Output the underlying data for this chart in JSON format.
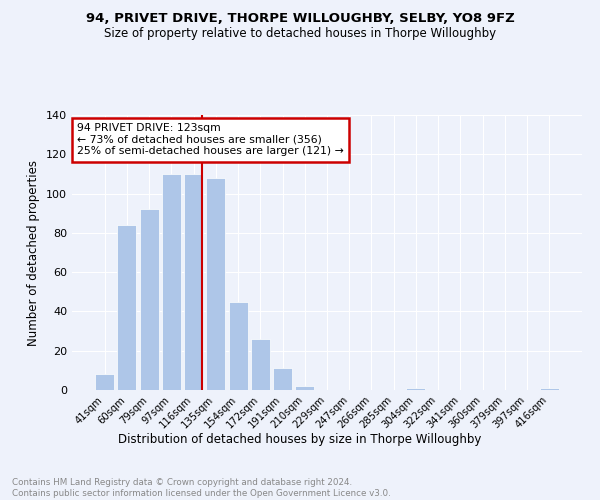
{
  "title": "94, PRIVET DRIVE, THORPE WILLOUGHBY, SELBY, YO8 9FZ",
  "subtitle": "Size of property relative to detached houses in Thorpe Willoughby",
  "xlabel": "Distribution of detached houses by size in Thorpe Willoughby",
  "ylabel": "Number of detached properties",
  "footnote": "Contains HM Land Registry data © Crown copyright and database right 2024.\nContains public sector information licensed under the Open Government Licence v3.0.",
  "bar_labels": [
    "41sqm",
    "60sqm",
    "79sqm",
    "97sqm",
    "116sqm",
    "135sqm",
    "154sqm",
    "172sqm",
    "191sqm",
    "210sqm",
    "229sqm",
    "247sqm",
    "266sqm",
    "285sqm",
    "304sqm",
    "322sqm",
    "341sqm",
    "360sqm",
    "379sqm",
    "397sqm",
    "416sqm"
  ],
  "bar_values": [
    8,
    84,
    92,
    110,
    110,
    108,
    45,
    26,
    11,
    2,
    0,
    0,
    0,
    0,
    1,
    0,
    0,
    0,
    0,
    0,
    1
  ],
  "bar_color": "#aec6e8",
  "vline_color": "#cc0000",
  "annotation_title": "94 PRIVET DRIVE: 123sqm",
  "annotation_line1": "← 73% of detached houses are smaller (356)",
  "annotation_line2": "25% of semi-detached houses are larger (121) →",
  "annotation_box_color": "#cc0000",
  "ylim": [
    0,
    140
  ],
  "yticks": [
    0,
    20,
    40,
    60,
    80,
    100,
    120,
    140
  ],
  "background_color": "#eef2fb",
  "grid_color": "#ffffff"
}
